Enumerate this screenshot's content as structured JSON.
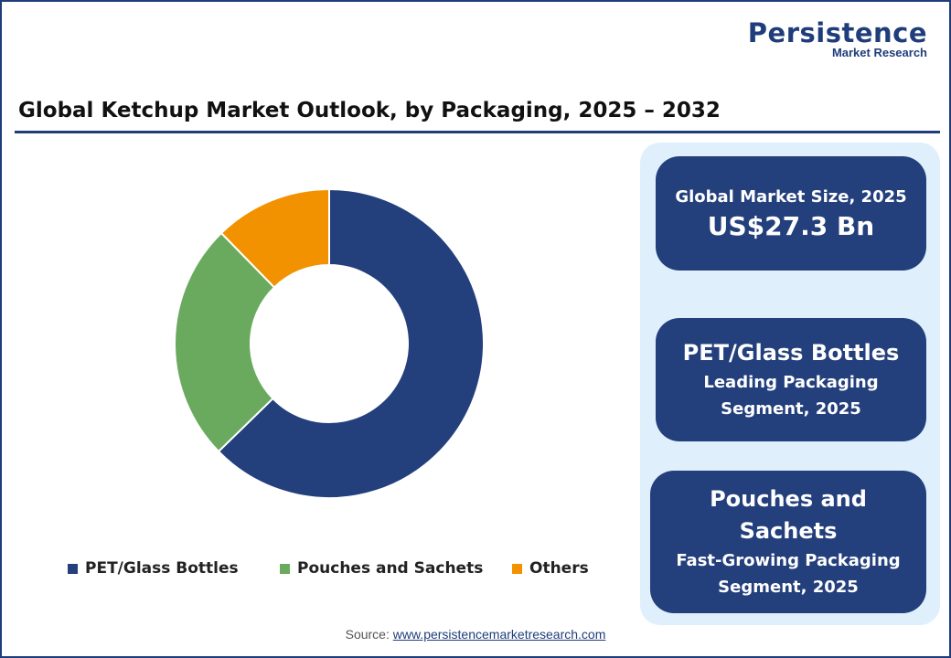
{
  "brand": {
    "name": "Persistence",
    "tagline": "Market Research"
  },
  "colors": {
    "navy": "#233f7c",
    "green": "#6aaa5e",
    "orange": "#f39200",
    "panel": "#dff0fc"
  },
  "cards": [
    {
      "line1": "Global Market Size, 2025",
      "line2": "US$27.3 Bn"
    },
    {
      "line1": "PET/Glass Bottles",
      "line2": "Leading Packaging",
      "line3": "Segment, 2025"
    },
    {
      "line1": "Pouches and",
      "line1b": "Sachets",
      "line2": "Fast-Growing Packaging",
      "line3": "Segment, 2025"
    }
  ],
  "source": {
    "label": "Source:",
    "link": "www.persistencemarketresearch.com"
  },
  "chart_data": {
    "type": "pie",
    "title": "Global Ketchup Market Outlook, by Packaging, 2025 – 2032",
    "donut": true,
    "categories": [
      "PET/Glass Bottles",
      "Pouches and Sachets",
      "Others"
    ],
    "values": [
      62.7,
      25.0,
      12.3
    ],
    "colors": [
      "#233f7c",
      "#6aaa5e",
      "#f39200"
    ],
    "legend": "bottom"
  }
}
